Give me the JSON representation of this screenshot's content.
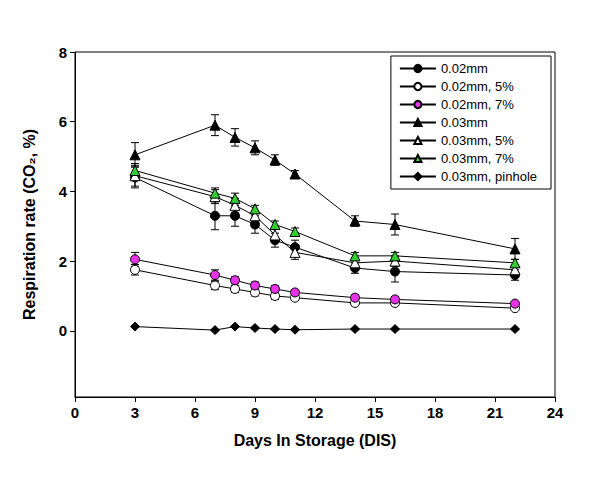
{
  "chart_data": {
    "type": "line",
    "x_label": "Days In Storage (DIS)",
    "y_label": "Respiration rate (CO₂, %)",
    "xlim": [
      0,
      24
    ],
    "xticks": [
      0,
      3,
      6,
      9,
      12,
      15,
      18,
      21,
      24
    ],
    "ylim": [
      -1.9,
      8
    ],
    "yticks": [
      0,
      2,
      4,
      6,
      8
    ],
    "grid": false,
    "legend": "top-right",
    "x": [
      3,
      7,
      8,
      9,
      10,
      11,
      14,
      16,
      22
    ],
    "series": [
      {
        "name": "0.02mm",
        "color": "#000000",
        "marker": "circle",
        "values": [
          4.4,
          3.3,
          3.3,
          3.05,
          2.6,
          2.4,
          1.8,
          1.7,
          1.6
        ],
        "errors": [
          0.3,
          0.4,
          0.3,
          0.25,
          0.2,
          0.2,
          0.15,
          0.3,
          0.15
        ]
      },
      {
        "name": "0.02mm, 5%",
        "color": "#ffffff",
        "marker": "circle",
        "values": [
          1.75,
          1.3,
          1.2,
          1.1,
          1.0,
          0.95,
          0.8,
          0.8,
          0.65
        ],
        "errors": [
          0.15,
          0.12,
          0.1,
          0.1,
          0.1,
          0.08,
          0.08,
          0.08,
          0.05
        ]
      },
      {
        "name": "0.02mm, 7%",
        "color": "#e633e6",
        "marker": "circle",
        "values": [
          2.05,
          1.6,
          1.45,
          1.3,
          1.2,
          1.1,
          0.95,
          0.9,
          0.78
        ],
        "errors": [
          0.2,
          0.15,
          0.1,
          0.1,
          0.1,
          0.08,
          0.08,
          0.08,
          0.05
        ]
      },
      {
        "name": "0.03mm",
        "color": "#000000",
        "marker": "triangle",
        "values": [
          5.05,
          5.9,
          5.55,
          5.25,
          4.9,
          4.5,
          3.15,
          3.05,
          2.35
        ],
        "errors": [
          0.35,
          0.3,
          0.25,
          0.2,
          0.15,
          0.1,
          0.15,
          0.3,
          0.3
        ]
      },
      {
        "name": "0.03mm, 5%",
        "color": "#ffffff",
        "marker": "triangle",
        "values": [
          4.45,
          3.85,
          3.6,
          3.3,
          2.75,
          2.25,
          1.95,
          2.0,
          1.75
        ],
        "errors": [
          0.3,
          0.2,
          0.2,
          0.15,
          0.2,
          0.2,
          0.15,
          0.15,
          0.15
        ]
      },
      {
        "name": "0.03mm, 7%",
        "color": "#33cc33",
        "marker": "triangle",
        "values": [
          4.6,
          3.95,
          3.8,
          3.5,
          3.05,
          2.85,
          2.15,
          2.15,
          1.95
        ],
        "errors": [
          0.2,
          0.15,
          0.15,
          0.1,
          0.1,
          0.1,
          0.1,
          0.1,
          0.1
        ]
      },
      {
        "name": "0.03mm, pinhole",
        "color": "#000000",
        "marker": "diamond",
        "values": [
          0.12,
          0.02,
          0.12,
          0.08,
          0.05,
          0.03,
          0.05,
          0.05,
          0.05
        ],
        "errors": [
          0.02,
          0.02,
          0.02,
          0.02,
          0.02,
          0.02,
          0.02,
          0.02,
          0.02
        ]
      }
    ]
  }
}
